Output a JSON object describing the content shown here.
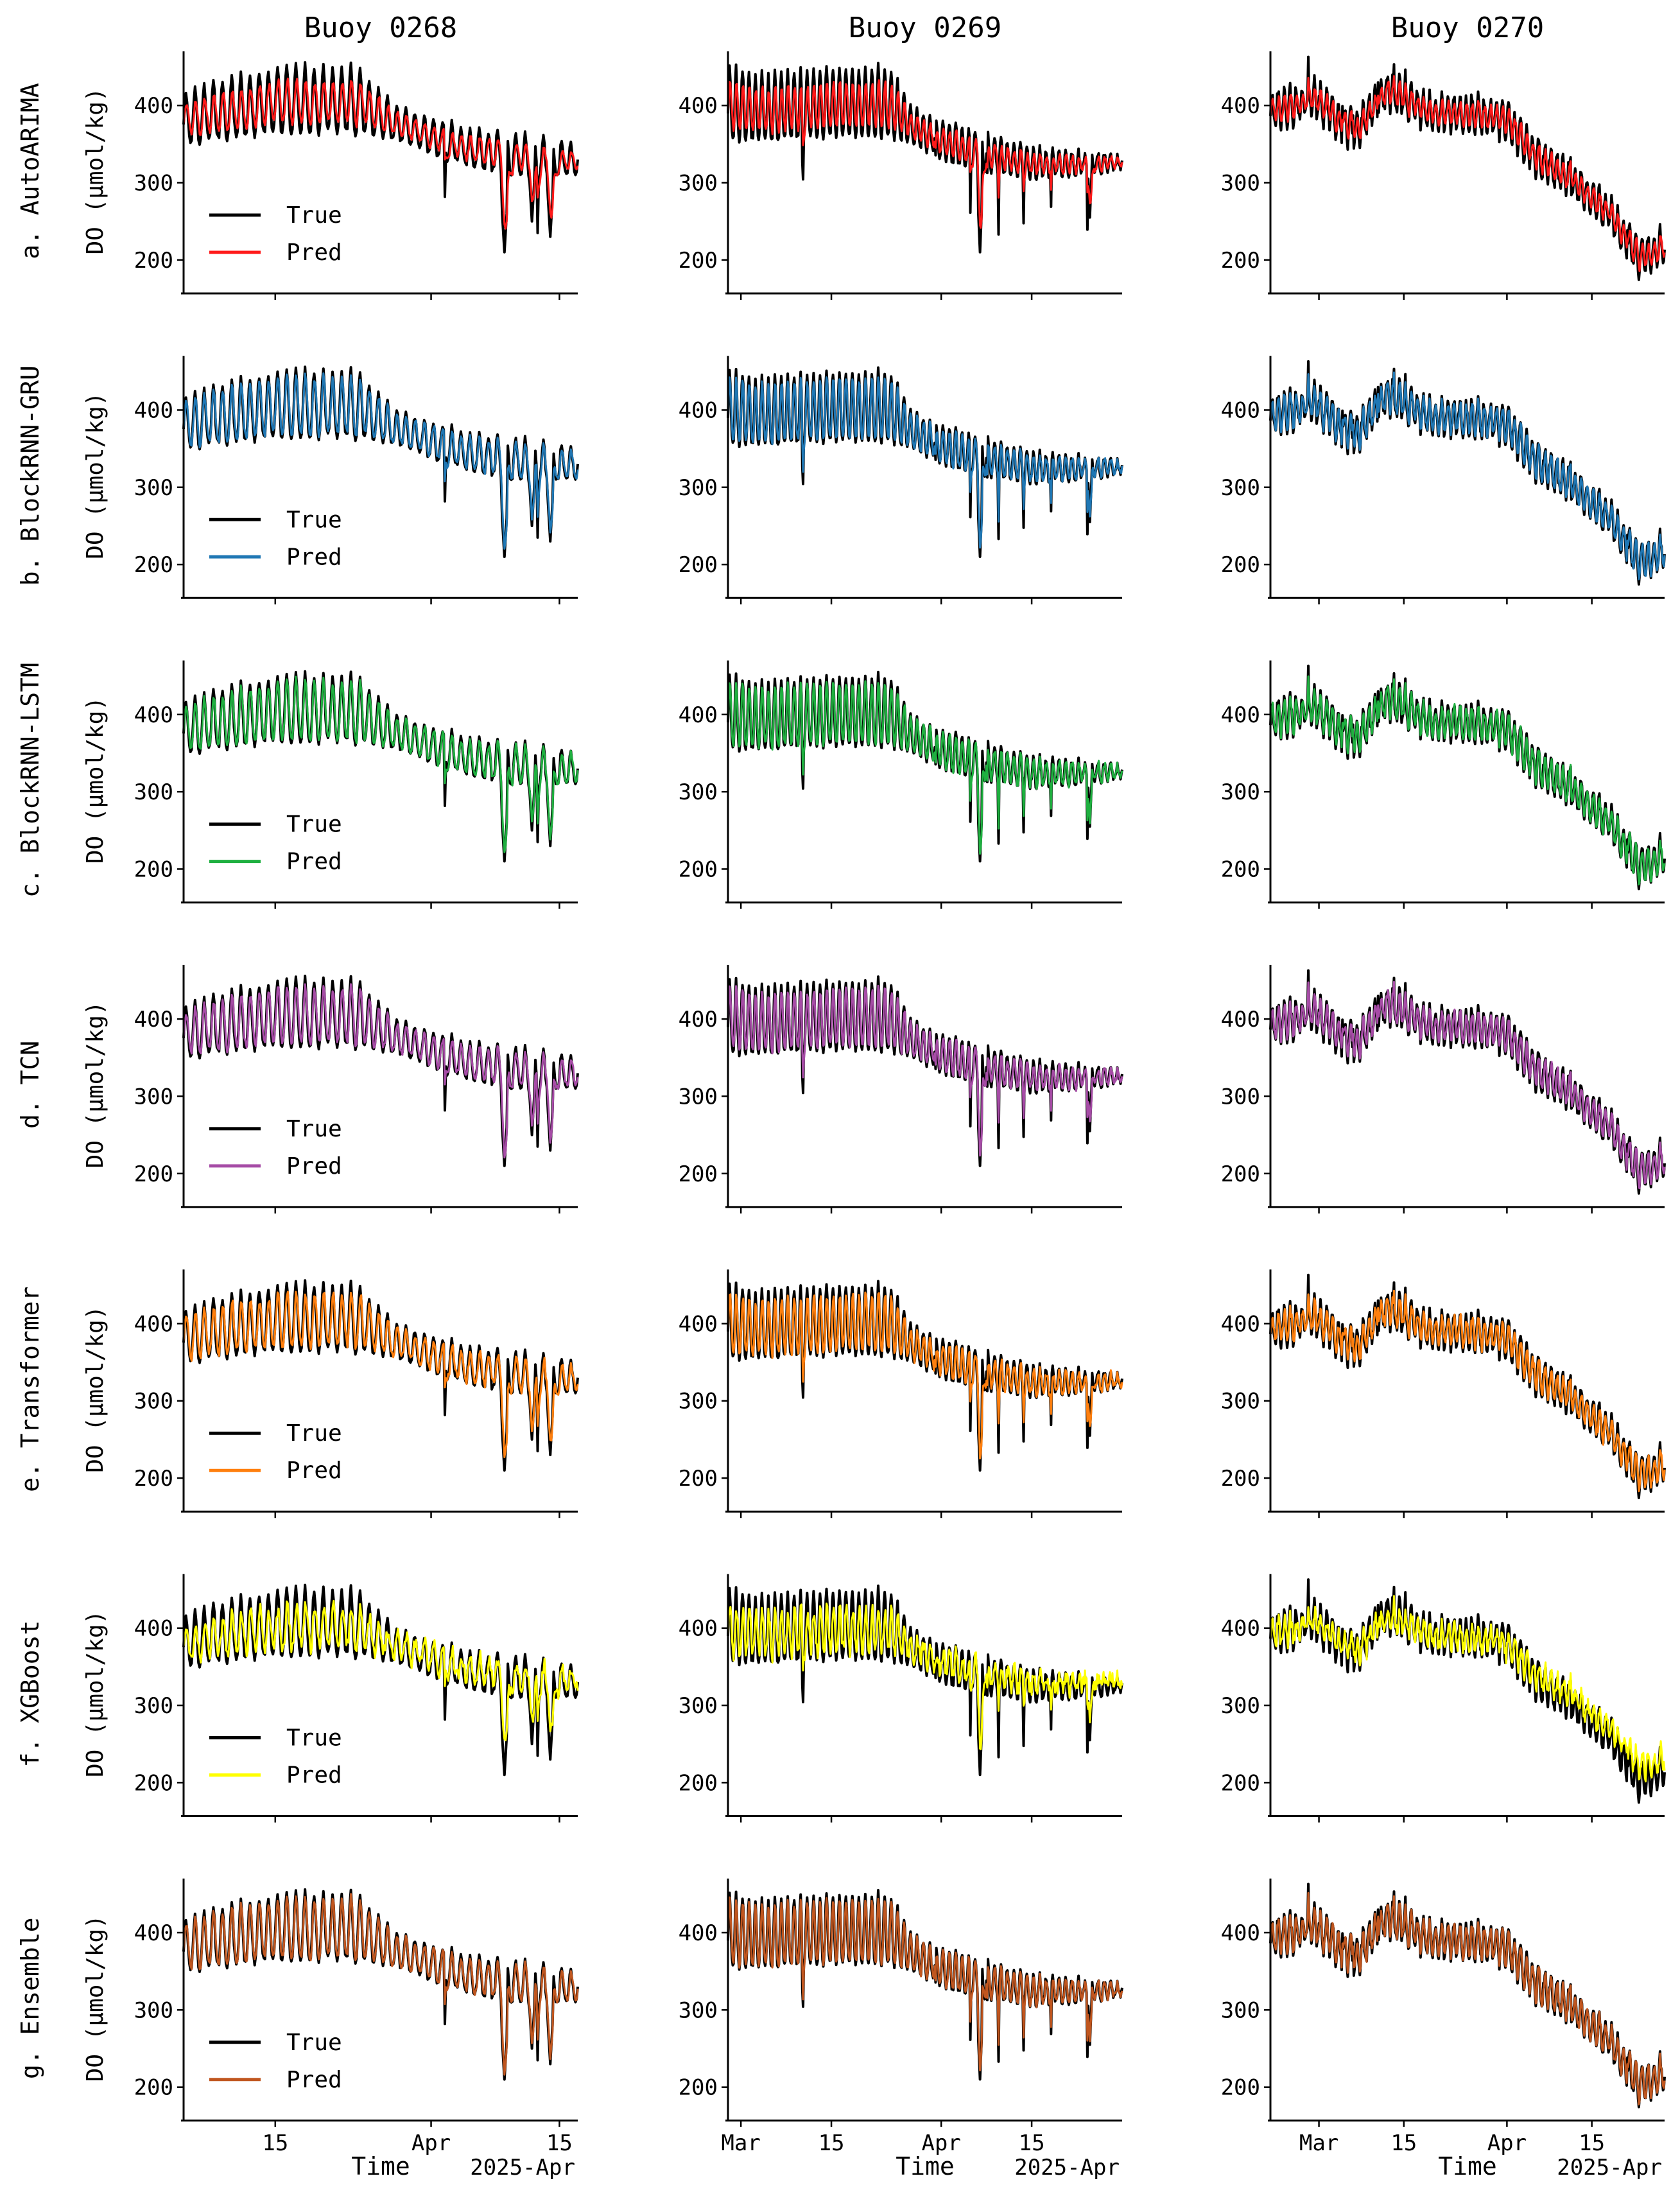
{
  "columns": [
    "Buoy 0268",
    "Buoy 0269",
    "Buoy 0270"
  ],
  "ylabel": "DO (μmol/kg)",
  "xlabel": "Time",
  "offset_label": "2025-Apr",
  "legend": {
    "true_label": "True",
    "pred_label": "Pred"
  },
  "true_color": "#000000",
  "rows": [
    {
      "label": "a.  AutoARIMA",
      "model": "AutoARIMA",
      "color": "#ff1a1a"
    },
    {
      "label": "b.  BlockRNN-GRU",
      "model": "BlockRNN-GRU",
      "color": "#1f77b4"
    },
    {
      "label": "c.  BlockRNN-LSTM",
      "model": "BlockRNN-LSTM",
      "color": "#1fb040"
    },
    {
      "label": "d.  TCN",
      "model": "TCN",
      "color": "#a64ca6"
    },
    {
      "label": "e.  Transformer",
      "model": "Transformer",
      "color": "#ff7f0e"
    },
    {
      "label": "f.  XGBoost",
      "model": "XGBoost",
      "color": "#ffff00"
    },
    {
      "label": "g.  Ensemble",
      "model": "Ensemble",
      "color": "#c0561f"
    }
  ],
  "x_ticks": [
    [
      "15",
      "Apr",
      "15"
    ],
    [
      "Mar",
      "15",
      "Apr",
      "15"
    ],
    [
      "Mar",
      "15",
      "Apr",
      "15"
    ]
  ],
  "chart_data": {
    "type": "line",
    "title": "",
    "y_ticks": [
      200,
      300,
      400
    ],
    "ylim": [
      160,
      470
    ],
    "buoys": [
      {
        "name": "Buoy 0268",
        "x_range": [
          "2025-03-05",
          "2025-04-17"
        ],
        "true_envelope": {
          "dates": [
            "2025-03-05",
            "2025-03-10",
            "2025-03-15",
            "2025-03-20",
            "2025-03-24",
            "2025-03-28",
            "2025-04-01",
            "2025-04-05",
            "2025-04-10",
            "2025-04-15",
            "2025-04-17"
          ],
          "high": [
            420,
            435,
            450,
            452,
            450,
            400,
            385,
            370,
            365,
            355,
            345
          ],
          "low": [
            340,
            345,
            350,
            350,
            350,
            345,
            330,
            315,
            300,
            300,
            310
          ],
          "dips": [
            {
              "date": "2025-04-09",
              "value": 210
            },
            {
              "date": "2025-04-14",
              "value": 230
            },
            {
              "date": "2025-04-12",
              "value": 250
            }
          ]
        }
      },
      {
        "name": "Buoy 0269",
        "x_range": [
          "2025-02-27",
          "2025-04-29"
        ],
        "true_envelope": {
          "dates": [
            "2025-02-27",
            "2025-03-05",
            "2025-03-15",
            "2025-03-24",
            "2025-03-28",
            "2025-04-05",
            "2025-04-15",
            "2025-04-29"
          ],
          "high": [
            450,
            440,
            450,
            450,
            395,
            370,
            345,
            335
          ],
          "low": [
            340,
            340,
            345,
            345,
            340,
            310,
            300,
            315
          ],
          "dips": [
            {
              "date": "2025-04-07",
              "value": 210
            },
            {
              "date": "2025-04-24",
              "value": 255
            }
          ]
        }
      },
      {
        "name": "Buoy 0270",
        "x_range": [
          "2025-02-21",
          "2025-04-27"
        ],
        "true_level": {
          "dates": [
            "2025-02-21",
            "2025-02-28",
            "2025-03-07",
            "2025-03-12",
            "2025-03-20",
            "2025-03-26",
            "2025-04-01",
            "2025-04-05",
            "2025-04-12",
            "2025-04-18",
            "2025-04-23",
            "2025-04-27"
          ],
          "values": [
            390,
            410,
            365,
            420,
            390,
            390,
            380,
            340,
            300,
            260,
            200,
            220
          ]
        }
      }
    ]
  }
}
